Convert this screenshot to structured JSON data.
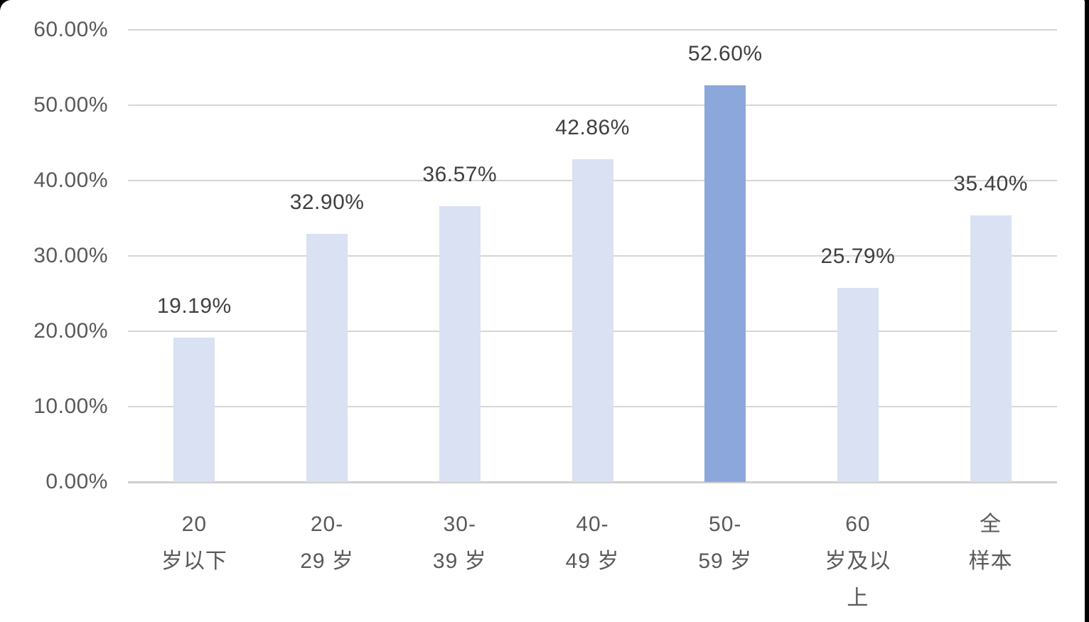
{
  "chart_data": {
    "type": "bar",
    "title": "",
    "xlabel": "",
    "ylabel": "",
    "categories": [
      "20 岁以下",
      "20-29 岁",
      "30-39 岁",
      "40-49 岁",
      "50-59 岁",
      "60 岁及以上",
      "全样本"
    ],
    "category_lines": [
      [
        "20",
        "岁以下"
      ],
      [
        "20-",
        "29 岁"
      ],
      [
        "30-",
        "39 岁"
      ],
      [
        "40-",
        "49 岁"
      ],
      [
        "50-",
        "59 岁"
      ],
      [
        "60",
        "岁及以",
        "上"
      ],
      [
        "全",
        "样本"
      ]
    ],
    "values": [
      19.19,
      32.9,
      36.57,
      42.86,
      52.6,
      25.79,
      35.4
    ],
    "data_labels": [
      "19.19%",
      "32.90%",
      "36.57%",
      "42.86%",
      "52.60%",
      "25.79%",
      "35.40%"
    ],
    "highlighted_index": 4,
    "y_ticks": [
      "0.00%",
      "10.00%",
      "20.00%",
      "30.00%",
      "40.00%",
      "50.00%",
      "60.00%"
    ],
    "ylim": [
      0,
      60
    ],
    "y_step": 10,
    "grid": true,
    "legend": "none",
    "colors": {
      "bar_default": "#d9e1f2",
      "bar_highlight": "#8ca7db",
      "gridline": "#d6d6d6",
      "axis_line": "#d0d0d0",
      "data_label": "#404040",
      "tick_label": "#595959",
      "background": "#ffffff",
      "page_background": "#000000"
    }
  }
}
